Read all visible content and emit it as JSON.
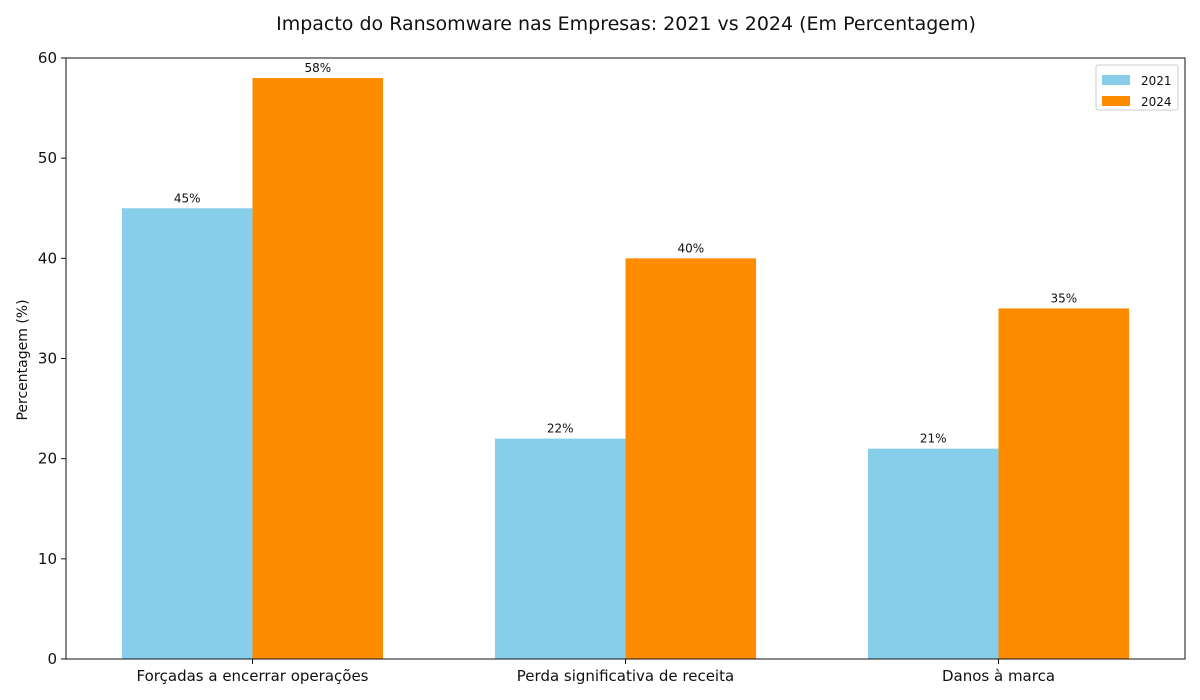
{
  "chart_data": {
    "type": "bar",
    "title": "Impacto do Ransomware nas Empresas: 2021 vs 2024 (Em Percentagem)",
    "xlabel": "",
    "ylabel": "Percentagem (%)",
    "categories": [
      "Forçadas a encerrar operações",
      "Perda significativa de receita",
      "Danos à marca"
    ],
    "series": [
      {
        "name": "2021",
        "values": [
          45,
          22,
          21
        ],
        "labels": [
          "45%",
          "22%",
          "21%"
        ],
        "color": "#87CEEB"
      },
      {
        "name": "2024",
        "values": [
          58,
          40,
          35
        ],
        "labels": [
          "58%",
          "40%",
          "35%"
        ],
        "color": "#FF8C00"
      }
    ],
    "ylim": [
      0,
      60
    ],
    "yticks": [
      0,
      10,
      20,
      30,
      40,
      50,
      60
    ],
    "grid": false,
    "legend_position": "top-right"
  }
}
